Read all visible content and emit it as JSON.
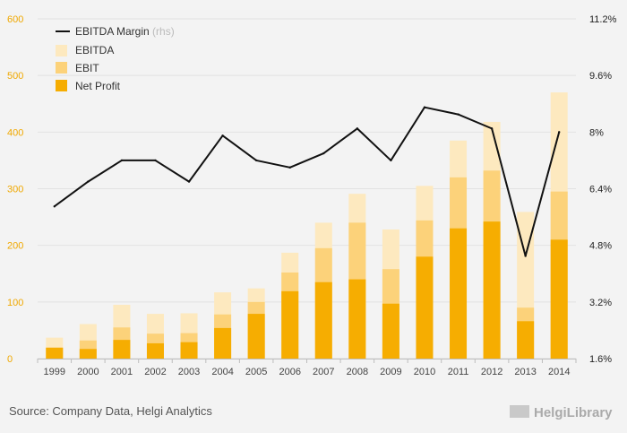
{
  "chart_data": {
    "type": "bar",
    "categories": [
      "1999",
      "2000",
      "2001",
      "2002",
      "2003",
      "2004",
      "2005",
      "2006",
      "2007",
      "2008",
      "2009",
      "2010",
      "2011",
      "2012",
      "2013",
      "2014"
    ],
    "series": [
      {
        "name": "EBITDA",
        "axis": "left",
        "color": "#fde9bf",
        "values": [
          37,
          61,
          95,
          79,
          80,
          117,
          124,
          187,
          240,
          291,
          228,
          305,
          385,
          418,
          259,
          470
        ]
      },
      {
        "name": "EBIT",
        "axis": "left",
        "color": "#fcd27a",
        "values": [
          20,
          32,
          55,
          44,
          45,
          78,
          100,
          152,
          195,
          240,
          158,
          244,
          320,
          332,
          90,
          295
        ]
      },
      {
        "name": "Net Profit",
        "axis": "left",
        "color": "#f6ad01",
        "values": [
          19,
          17,
          33,
          27,
          29,
          54,
          79,
          119,
          135,
          140,
          97,
          180,
          230,
          242,
          66,
          210
        ]
      },
      {
        "name": "EBITDA Margin",
        "axis": "right",
        "type": "line",
        "color": "#111111",
        "values": [
          5.9,
          6.6,
          7.2,
          7.2,
          6.6,
          7.9,
          7.2,
          7.0,
          7.4,
          8.1,
          7.2,
          8.7,
          8.5,
          8.1,
          4.5,
          8.0
        ]
      }
    ],
    "ylim_left": [
      0,
      600
    ],
    "yticks_left": [
      "0",
      "100",
      "200",
      "300",
      "400",
      "500",
      "600"
    ],
    "ylim_right": [
      1.6,
      11.2
    ],
    "yticks_right": [
      "1.6%",
      "3.2%",
      "4.8%",
      "6.4%",
      "8%",
      "9.6%",
      "11.2%"
    ],
    "legend": {
      "position": "top-left",
      "line_label": "EBITDA Margin",
      "line_suffix": "(rhs)",
      "ebitda_label": "EBITDA",
      "ebit_label": "EBIT",
      "net_label": "Net Profit"
    },
    "source": "Source: Company Data, Helgi Analytics",
    "brand": "HelgiLibrary"
  }
}
